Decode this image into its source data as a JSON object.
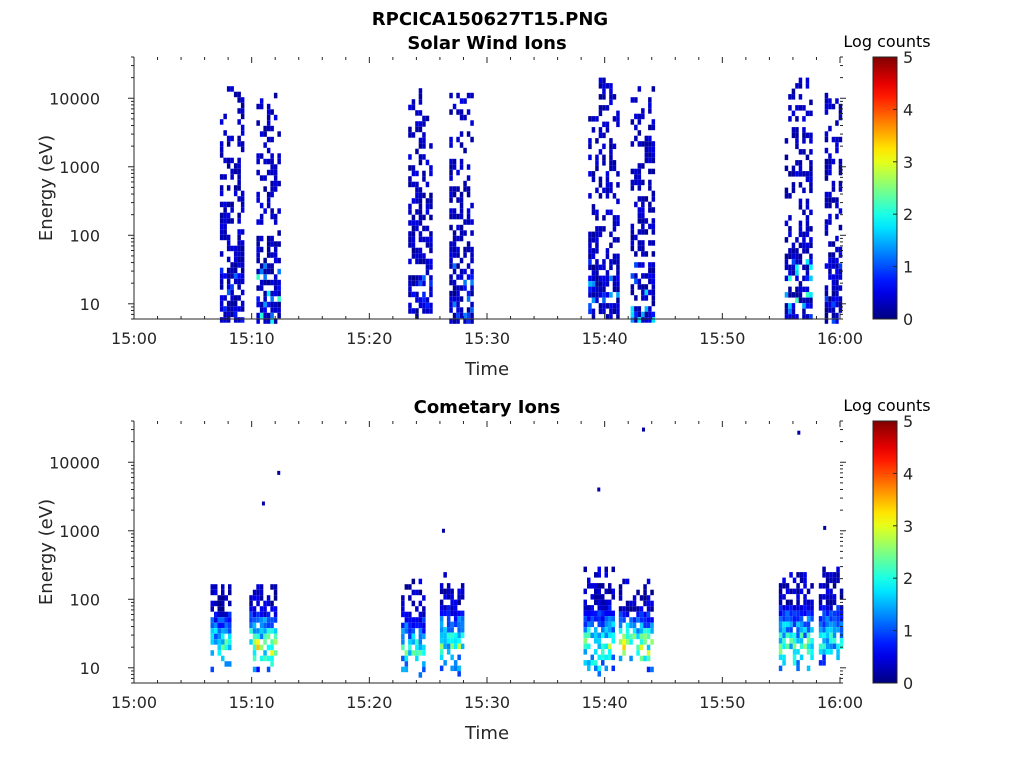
{
  "figure_title": "RPCICA150627T15.PNG",
  "chart_data": [
    {
      "type": "heatmap",
      "title": "Solar Wind Ions",
      "xlabel": "Time",
      "ylabel": "Energy (eV)",
      "x_ticks": [
        "15:00",
        "15:10",
        "15:20",
        "15:30",
        "15:40",
        "15:50",
        "16:00"
      ],
      "xlim": [
        "15:00",
        "16:00"
      ],
      "y_scale": "log",
      "y_ticks": [
        "10",
        "100",
        "1000",
        "10000"
      ],
      "ylim": [
        6,
        40000
      ],
      "colorbar": {
        "label": "Log counts",
        "range": [
          0,
          5
        ],
        "ticks": [
          "0",
          "1",
          "2",
          "3",
          "4",
          "5"
        ],
        "colormap": "jet"
      },
      "bursts": [
        {
          "start_min": 7.3,
          "end_min": 9.2,
          "emin_eV": 6,
          "emax_eV": 15000,
          "peak_log_counts": 1.2
        },
        {
          "start_min": 10.4,
          "end_min": 12.4,
          "emin_eV": 6,
          "emax_eV": 12000,
          "peak_log_counts": 2.3
        },
        {
          "start_min": 23.3,
          "end_min": 25.2,
          "emin_eV": 6,
          "emax_eV": 14000,
          "peak_log_counts": 1.1
        },
        {
          "start_min": 26.8,
          "end_min": 28.7,
          "emin_eV": 6,
          "emax_eV": 12000,
          "peak_log_counts": 1.4
        },
        {
          "start_min": 38.6,
          "end_min": 41.2,
          "emin_eV": 6,
          "emax_eV": 20000,
          "peak_log_counts": 1.6
        },
        {
          "start_min": 42.2,
          "end_min": 44.2,
          "emin_eV": 6,
          "emax_eV": 15000,
          "peak_log_counts": 1.8
        },
        {
          "start_min": 55.3,
          "end_min": 57.5,
          "emin_eV": 6,
          "emax_eV": 20000,
          "peak_log_counts": 2.2
        },
        {
          "start_min": 58.7,
          "end_min": 60.0,
          "emin_eV": 6,
          "emax_eV": 12000,
          "peak_log_counts": 1.3
        }
      ]
    },
    {
      "type": "heatmap",
      "title": "Cometary Ions",
      "xlabel": "Time",
      "ylabel": "Energy (eV)",
      "x_ticks": [
        "15:00",
        "15:10",
        "15:20",
        "15:30",
        "15:40",
        "15:50",
        "16:00"
      ],
      "xlim": [
        "15:00",
        "16:00"
      ],
      "y_scale": "log",
      "y_ticks": [
        "10",
        "100",
        "1000",
        "10000"
      ],
      "ylim": [
        6,
        40000
      ],
      "colorbar": {
        "label": "Log counts",
        "range": [
          0,
          5
        ],
        "ticks": [
          "0",
          "1",
          "2",
          "3",
          "4",
          "5"
        ],
        "colormap": "jet"
      },
      "bursts": [
        {
          "start_min": 6.5,
          "end_min": 8.2,
          "emin_eV": 10,
          "emax_eV": 200,
          "peak_log_counts": 2.4
        },
        {
          "start_min": 9.8,
          "end_min": 12.0,
          "emin_eV": 10,
          "emax_eV": 200,
          "peak_log_counts": 3.2
        },
        {
          "start_min": 22.7,
          "end_min": 24.5,
          "emin_eV": 8,
          "emax_eV": 200,
          "peak_log_counts": 2.2
        },
        {
          "start_min": 26.0,
          "end_min": 28.0,
          "emin_eV": 8,
          "emax_eV": 300,
          "peak_log_counts": 2.4
        },
        {
          "start_min": 38.2,
          "end_min": 40.8,
          "emin_eV": 8,
          "emax_eV": 300,
          "peak_log_counts": 2.6
        },
        {
          "start_min": 41.2,
          "end_min": 44.0,
          "emin_eV": 10,
          "emax_eV": 200,
          "peak_log_counts": 3.2
        },
        {
          "start_min": 54.8,
          "end_min": 57.5,
          "emin_eV": 8,
          "emax_eV": 300,
          "peak_log_counts": 2.6
        },
        {
          "start_min": 58.2,
          "end_min": 60.0,
          "emin_eV": 10,
          "emax_eV": 300,
          "peak_log_counts": 2.2
        }
      ],
      "outliers": [
        {
          "t_min": 12.3,
          "energy_eV": 7000,
          "log_counts": 0.2
        },
        {
          "t_min": 11.0,
          "energy_eV": 2500,
          "log_counts": 0.2
        },
        {
          "t_min": 26.3,
          "energy_eV": 1000,
          "log_counts": 0.2
        },
        {
          "t_min": 39.5,
          "energy_eV": 4000,
          "log_counts": 0.2
        },
        {
          "t_min": 43.3,
          "energy_eV": 30000,
          "log_counts": 0.2
        },
        {
          "t_min": 56.5,
          "energy_eV": 27000,
          "log_counts": 0.2
        },
        {
          "t_min": 58.7,
          "energy_eV": 1100,
          "log_counts": 0.2
        }
      ]
    }
  ]
}
